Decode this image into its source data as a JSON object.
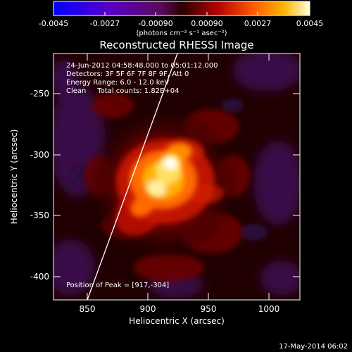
{
  "colorbar": {
    "tick_labels": [
      "-0.0045",
      "-0.0027",
      "-0.00090",
      "0.00090",
      "0.0027",
      "0.0045"
    ],
    "unit_label": "(photons cm⁻² s⁻¹ asec⁻²)"
  },
  "title": "Reconstructed RHESSI Image",
  "info": {
    "line1": "24-Jun-2012 04:58:48.000 to 05:01:12.000",
    "line2": "Detectors: 3F 5F 6F 7F 8F 9F, Att 0",
    "line3": "Energy Range: 6.0 - 12.0 keV",
    "line4": "Clean     Total counts: 1.82E+04"
  },
  "peak_label": "Position of Peak = [917,-304]",
  "axes": {
    "xlabel": "Heliocentric X (arcsec)",
    "ylabel": "Heliocentric Y (arcsec)",
    "x_ticks": [
      "850",
      "900",
      "950",
      "1000"
    ],
    "y_ticks": [
      "-250",
      "-300",
      "-350",
      "-400"
    ]
  },
  "timestamp": "17-May-2014 06:02"
}
